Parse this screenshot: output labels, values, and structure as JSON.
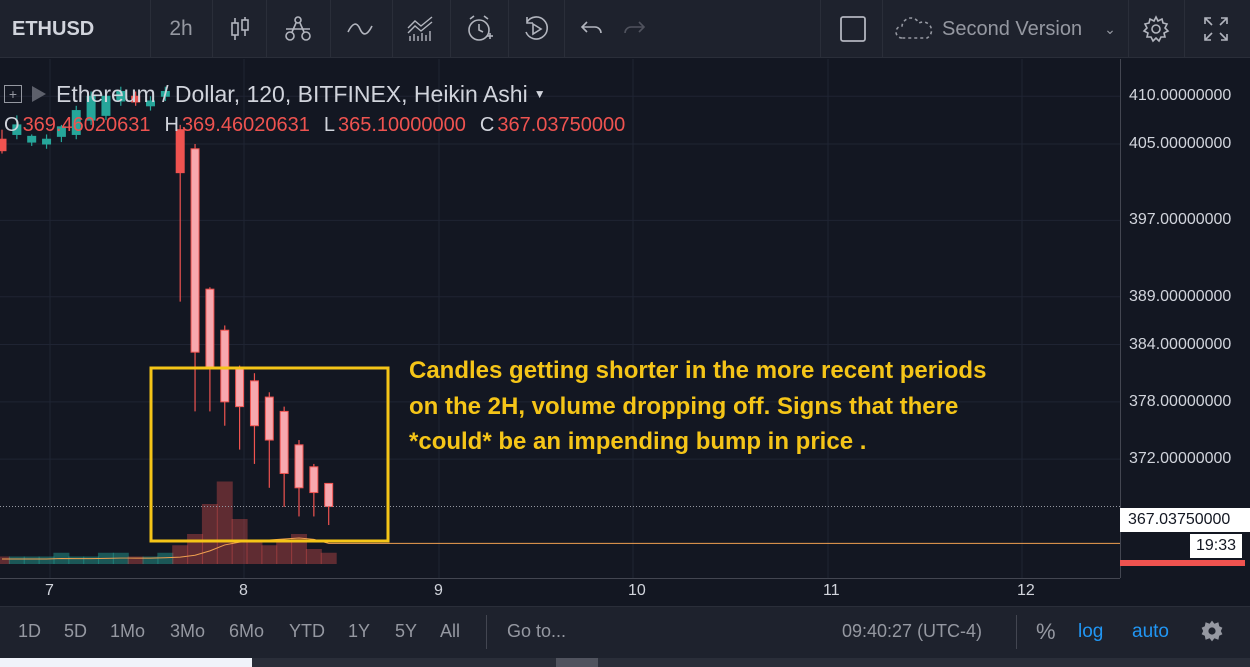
{
  "toolbar": {
    "symbol": "ETHUSD",
    "interval": "2h",
    "layout_name": "Second Version",
    "icons": [
      "candle-style-icon",
      "indicators-icon",
      "compare-icon",
      "financials-icon",
      "alert-icon",
      "replay-icon",
      "undo-icon",
      "redo-icon",
      "layout-square-icon",
      "cloud-icon",
      "settings-icon",
      "fullscreen-icon"
    ]
  },
  "legend": {
    "title": "Ethereum / Dollar, 120, BITFINEX, Heikin Ashi",
    "o_label": "O",
    "o_value": "369.46020631",
    "h_label": "H",
    "h_value": "369.46020631",
    "l_label": "L",
    "l_value": "365.10000000",
    "c_label": "C",
    "c_value": "367.03750000"
  },
  "annotation": {
    "text": "Candles getting shorter in the more recent periods on the 2H, volume dropping off. Signs that there *could* be an impending bump in price .",
    "color": "#f5c518"
  },
  "price_axis": {
    "ticks": [
      "410.00000000",
      "405.00000000",
      "397.00000000",
      "389.00000000",
      "384.00000000",
      "378.00000000",
      "372.00000000"
    ],
    "last_price": "367.03750000",
    "countdown": "19:33"
  },
  "time_axis": {
    "ticks": [
      "7",
      "8",
      "9",
      "10",
      "11",
      "12"
    ]
  },
  "bottombar": {
    "ranges": [
      "1D",
      "5D",
      "1Mo",
      "3Mo",
      "6Mo",
      "YTD",
      "1Y",
      "5Y",
      "All"
    ],
    "goto": "Go to...",
    "clock": "09:40:27 (UTC-4)",
    "percent": "%",
    "log": "log",
    "auto": "auto"
  },
  "colors": {
    "up": "#26a69a",
    "down": "#ef5350",
    "down_light": "#f7a8ae",
    "background": "#131722",
    "accent": "#2196f3"
  },
  "chart_data": {
    "type": "candlestick",
    "style": "Heikin Ashi",
    "symbol": "ETHUSD",
    "exchange": "BITFINEX",
    "interval_minutes": 120,
    "x_ticks": [
      "7",
      "8",
      "9",
      "10",
      "11",
      "12"
    ],
    "y_range": [
      362,
      412
    ],
    "candles": [
      {
        "o": 405.5,
        "h": 406.5,
        "l": 404.0,
        "c": 404.3
      },
      {
        "o": 406.0,
        "h": 408.0,
        "l": 405.5,
        "c": 407.0
      },
      {
        "o": 405.2,
        "h": 406.0,
        "l": 404.8,
        "c": 405.8
      },
      {
        "o": 405.0,
        "h": 406.0,
        "l": 404.5,
        "c": 405.5
      },
      {
        "o": 405.8,
        "h": 407.0,
        "l": 405.2,
        "c": 406.8
      },
      {
        "o": 406.0,
        "h": 409.0,
        "l": 405.5,
        "c": 408.5
      },
      {
        "o": 407.5,
        "h": 410.5,
        "l": 407.0,
        "c": 410.0
      },
      {
        "o": 408.0,
        "h": 410.5,
        "l": 407.5,
        "c": 410.0
      },
      {
        "o": 409.5,
        "h": 411.0,
        "l": 409.0,
        "c": 410.5
      },
      {
        "o": 410.0,
        "h": 410.5,
        "l": 409.0,
        "c": 409.4
      },
      {
        "o": 409.0,
        "h": 410.0,
        "l": 408.5,
        "c": 409.5
      },
      {
        "o": 410.0,
        "h": 411.0,
        "l": 409.5,
        "c": 410.5
      },
      {
        "o": 406.5,
        "h": 407.0,
        "l": 388.5,
        "c": 402.0
      },
      {
        "o": 404.5,
        "h": 405.0,
        "l": 377.0,
        "c": 383.2
      },
      {
        "o": 389.8,
        "h": 390.0,
        "l": 377.0,
        "c": 381.5
      },
      {
        "o": 385.5,
        "h": 386.0,
        "l": 375.5,
        "c": 378.0
      },
      {
        "o": 381.5,
        "h": 381.8,
        "l": 373.0,
        "c": 377.5
      },
      {
        "o": 380.2,
        "h": 381.0,
        "l": 371.5,
        "c": 375.5
      },
      {
        "o": 378.5,
        "h": 379.0,
        "l": 369.0,
        "c": 374.0
      },
      {
        "o": 377.0,
        "h": 377.5,
        "l": 367.0,
        "c": 370.5
      },
      {
        "o": 373.5,
        "h": 374.0,
        "l": 366.0,
        "c": 369.0
      },
      {
        "o": 371.2,
        "h": 371.5,
        "l": 366.0,
        "c": 368.5
      },
      {
        "o": 369.46,
        "h": 369.46,
        "l": 365.1,
        "c": 367.0375
      }
    ],
    "volume": [
      1,
      1,
      1,
      1,
      1.5,
      1,
      1,
      1.5,
      1.5,
      1,
      1,
      1.5,
      2.5,
      4,
      8,
      11,
      6,
      3,
      2.5,
      3,
      4,
      2,
      1.5
    ],
    "last_price": 367.0375
  }
}
